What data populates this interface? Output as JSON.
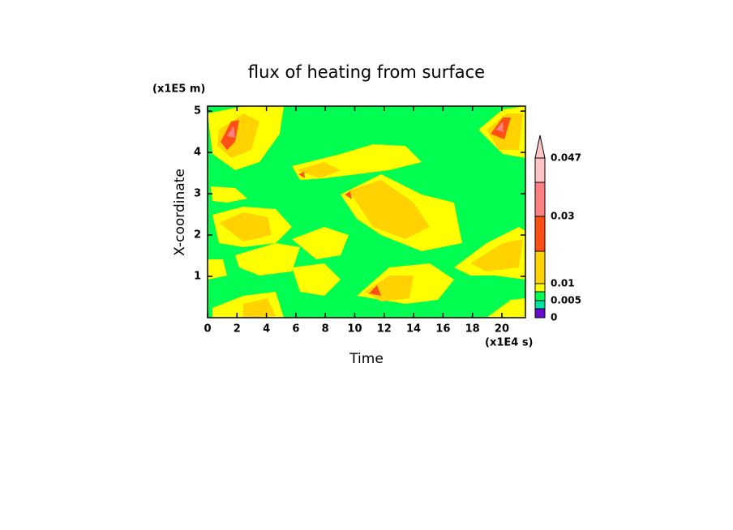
{
  "chart_data": {
    "type": "contour",
    "title": "flux of heating from surface",
    "x_label": "Time",
    "y_label": "X-coordinate",
    "x_unit": "(x1E4 s)",
    "y_unit": "(x1E5 m)",
    "xlim": [
      0,
      21.6
    ],
    "ylim": [
      0,
      5.12
    ],
    "xticks": [
      0,
      2,
      4,
      6,
      8,
      10,
      12,
      14,
      16,
      18,
      20
    ],
    "yticks": [
      1,
      2,
      3,
      4,
      5
    ],
    "colorbar": {
      "levels": [
        0,
        null,
        0.005,
        null,
        0.01,
        null,
        0.03,
        null,
        0.047
      ],
      "colors": [
        "#6a0ccf",
        "#00e6a0",
        "#00ff50",
        "#ffff00",
        "#ffd200",
        "#ff5014",
        "#ff8080",
        "#ffc4c4"
      ]
    }
  }
}
